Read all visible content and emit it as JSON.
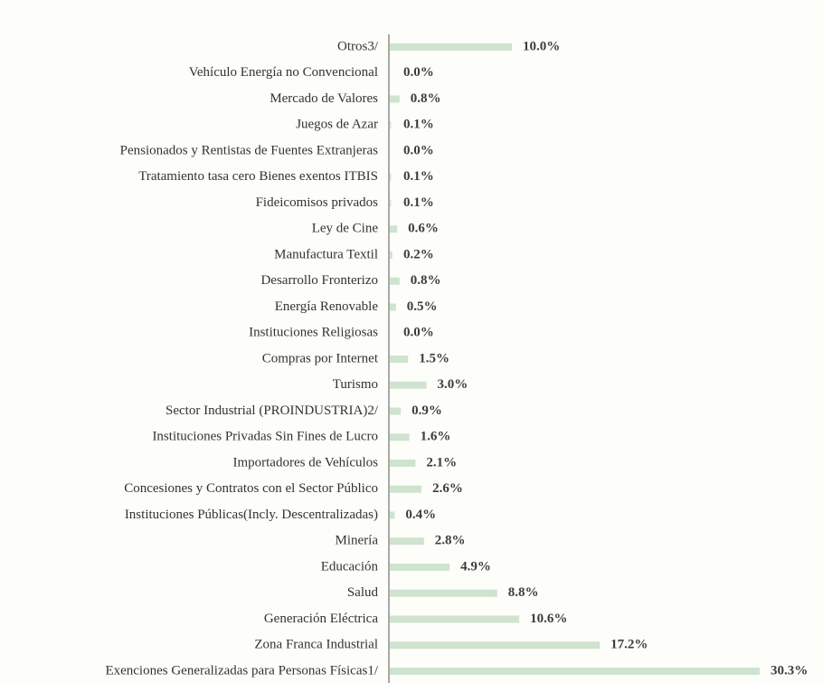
{
  "chart_data": {
    "type": "barh",
    "categories": [
      "Otros3/",
      "Vehículo Energía no Convencional",
      "Mercado de Valores",
      "Juegos de Azar",
      "Pensionados y Rentistas de Fuentes Extranjeras",
      "Tratamiento tasa cero Bienes exentos ITBIS",
      "Fideicomisos privados",
      "Ley de Cine",
      "Manufactura Textil",
      "Desarrollo Fronterizo",
      "Energía Renovable",
      "Instituciones Religiosas",
      "Compras por Internet",
      "Turismo",
      "Sector Industrial (PROINDUSTRIA)2/",
      "Instituciones Privadas Sin Fines de Lucro",
      "Importadores de Vehículos",
      "Concesiones y Contratos con el Sector Público",
      "Instituciones Públicas(Incly. Descentralizadas)",
      "Minería",
      "Educación",
      "Salud",
      "Generación Eléctrica",
      "Zona Franca Industrial",
      "Exenciones Generalizadas para Personas Físicas1/"
    ],
    "values": [
      10.0,
      0.0,
      0.8,
      0.1,
      0.0,
      0.1,
      0.1,
      0.6,
      0.2,
      0.8,
      0.5,
      0.0,
      1.5,
      3.0,
      0.9,
      1.6,
      2.1,
      2.6,
      0.4,
      2.8,
      4.9,
      8.8,
      10.6,
      17.2,
      30.3
    ],
    "value_labels": [
      "10.0%",
      "0.0%",
      "0.8%",
      "0.1%",
      "0.0%",
      "0.1%",
      "0.1%",
      "0.6%",
      "0.2%",
      "0.8%",
      "0.5%",
      "0.0%",
      "1.5%",
      "3.0%",
      "0.9%",
      "1.6%",
      "2.1%",
      "2.6%",
      "0.4%",
      "2.8%",
      "4.9%",
      "8.8%",
      "10.6%",
      "17.2%",
      "30.3%"
    ],
    "color": "#cfe3cf"
  }
}
